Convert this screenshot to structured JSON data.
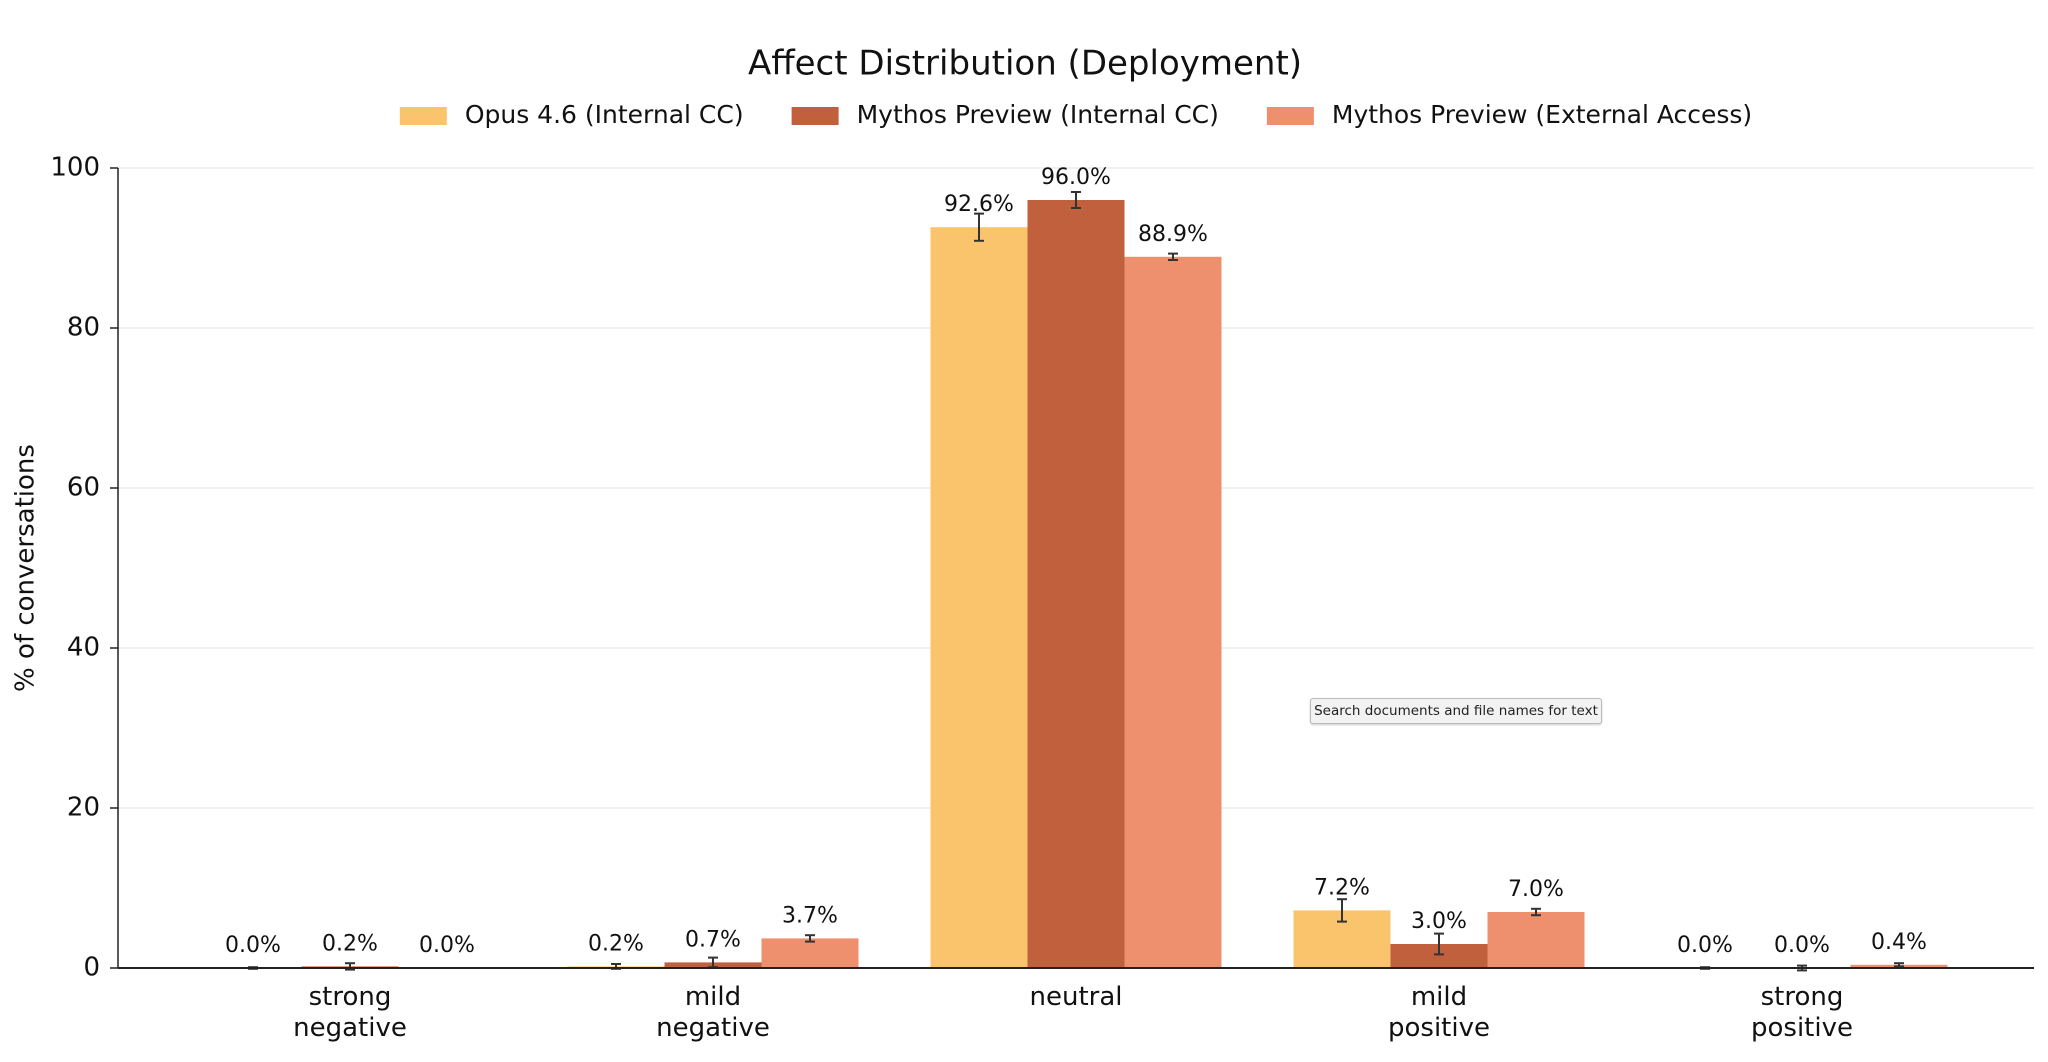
{
  "chart_data": {
    "type": "bar",
    "title": "Affect Distribution (Deployment)",
    "y_label": "% of conversations",
    "categories": [
      "strong negative",
      "mild negative",
      "neutral",
      "mild positive",
      "strong positive"
    ],
    "series": [
      {
        "name": "Opus 4.6 (Internal CC)",
        "color": "#f9c46b",
        "values": [
          0.0,
          0.2,
          92.6,
          7.2,
          0.0
        ],
        "errors": [
          0.1,
          0.3,
          1.7,
          1.4,
          0.1
        ],
        "value_labels": [
          "0.0%",
          "0.2%",
          "92.6%",
          "7.2%",
          "0.0%"
        ]
      },
      {
        "name": "Mythos Preview (Internal CC)",
        "color": "#c0603c",
        "values": [
          0.2,
          0.7,
          96.0,
          3.0,
          0.0
        ],
        "errors": [
          0.4,
          0.6,
          1.0,
          1.3,
          0.3
        ],
        "value_labels": [
          "0.2%",
          "0.7%",
          "96.0%",
          "3.0%",
          "0.0%"
        ]
      },
      {
        "name": "Mythos Preview (External Access)",
        "color": "#ee8f6e",
        "values": [
          0.0,
          3.7,
          88.9,
          7.0,
          0.4
        ],
        "errors": [
          0.0,
          0.4,
          0.4,
          0.4,
          0.2
        ],
        "value_labels": [
          "0.0%",
          "3.7%",
          "88.9%",
          "7.0%",
          "0.4%"
        ]
      }
    ],
    "ylim": [
      0,
      100
    ],
    "yticks": [
      0,
      20,
      40,
      60,
      80,
      100
    ],
    "grid": true,
    "legend": "top"
  },
  "tooltip": "Search documents and file names for text"
}
